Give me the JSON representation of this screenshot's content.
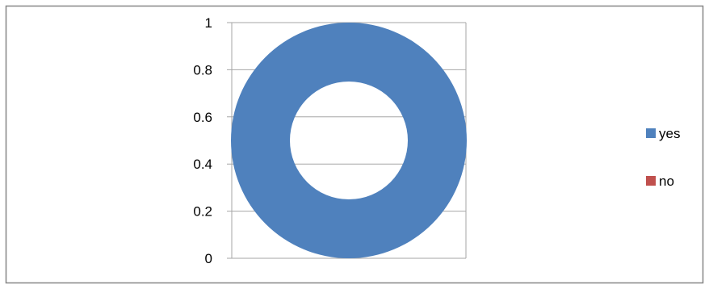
{
  "chart_data": {
    "type": "pie",
    "subtype": "doughnut",
    "categories": [
      "yes",
      "no"
    ],
    "values": [
      1,
      0
    ],
    "ylim": [
      0,
      1
    ],
    "yticks": [
      "0",
      "0.2",
      "0.4",
      "0.6",
      "0.8",
      "1"
    ],
    "grid": true,
    "legend": "right",
    "colors": {
      "yes": "#4F81BD",
      "no": "#C0504D",
      "gridline": "#A6A6A6",
      "border": "#868686"
    }
  }
}
